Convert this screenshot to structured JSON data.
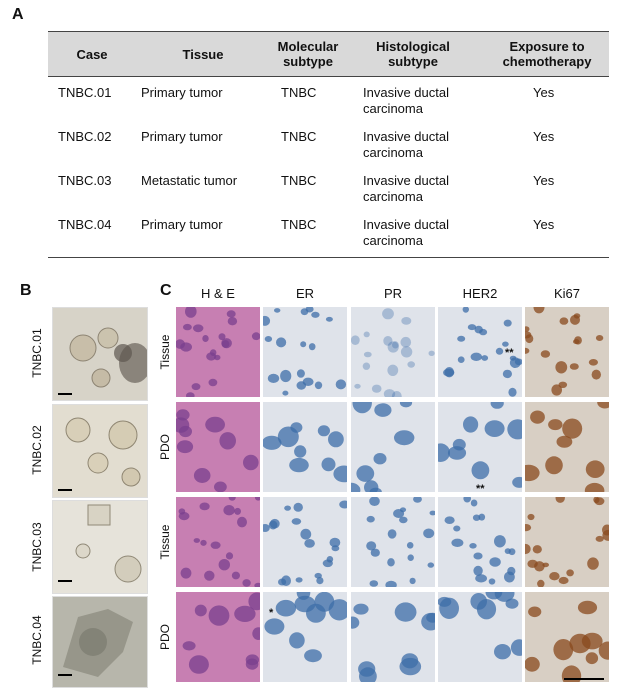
{
  "panels": {
    "a": "A",
    "b": "B",
    "c": "C"
  },
  "table": {
    "headers": [
      "Case",
      "Tissue",
      "Molecular subtype",
      "Histological subtype",
      "Exposure to chemotherapy"
    ],
    "header_lines": [
      [
        "Case"
      ],
      [
        "Tissue"
      ],
      [
        "Molecular",
        "subtype"
      ],
      [
        "Histological",
        "subtype"
      ],
      [
        "Exposure to",
        "chemotherapy"
      ]
    ],
    "rows": [
      {
        "case": "TNBC.01",
        "tissue": "Primary tumor",
        "molecular": "TNBC",
        "histo1": "Invasive ductal",
        "histo2": "carcinoma",
        "chemo": "Yes"
      },
      {
        "case": "TNBC.02",
        "tissue": "Primary tumor",
        "molecular": "TNBC",
        "histo1": "Invasive ductal",
        "histo2": "carcinoma",
        "chemo": "Yes"
      },
      {
        "case": "TNBC.03",
        "tissue": "Metastatic tumor",
        "molecular": "TNBC",
        "histo1": "Invasive ductal",
        "histo2": "carcinoma",
        "chemo": "Yes"
      },
      {
        "case": "TNBC.04",
        "tissue": "Primary tumor",
        "molecular": "TNBC",
        "histo1": "Invasive ductal",
        "histo2": "carcinoma",
        "chemo": "Yes"
      }
    ]
  },
  "panel_b": {
    "labels": [
      "TNBC.01",
      "TNBC.02",
      "TNBC.03",
      "TNBC.04"
    ]
  },
  "panel_c": {
    "columns": [
      "H & E",
      "ER",
      "PR",
      "HER2",
      "Ki67"
    ],
    "rows": [
      "Tissue",
      "PDO",
      "Tissue",
      "PDO"
    ],
    "annotations": {
      "double": "**",
      "single": "*"
    }
  },
  "colors": {
    "he_pink": "#c77fb2",
    "he_purple": "#7a3f8e",
    "hema_blue": "#3e6ea8",
    "dab_brown": "#8a4a1e",
    "ihc_bg": "#dfe3ea",
    "table_header": "#d9d9d9"
  }
}
